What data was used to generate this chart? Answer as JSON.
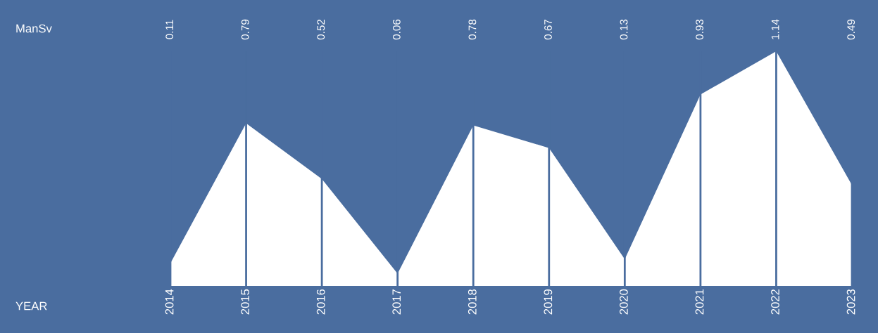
{
  "chart_data": {
    "type": "area",
    "annotations": [
      "ManSv",
      "YEAR"
    ],
    "categories": [
      "2014",
      "2015",
      "2016",
      "2017",
      "2018",
      "2019",
      "2020",
      "2021",
      "2022",
      "2023"
    ],
    "series": [
      {
        "color": "#ffffff",
        "values": [
          0.11,
          0.79,
          0.52,
          0.06,
          0.78,
          0.67,
          0.13,
          0.93,
          1.14,
          0.49
        ]
      }
    ],
    "data_labels": true,
    "grid": "x",
    "legend": false
  }
}
